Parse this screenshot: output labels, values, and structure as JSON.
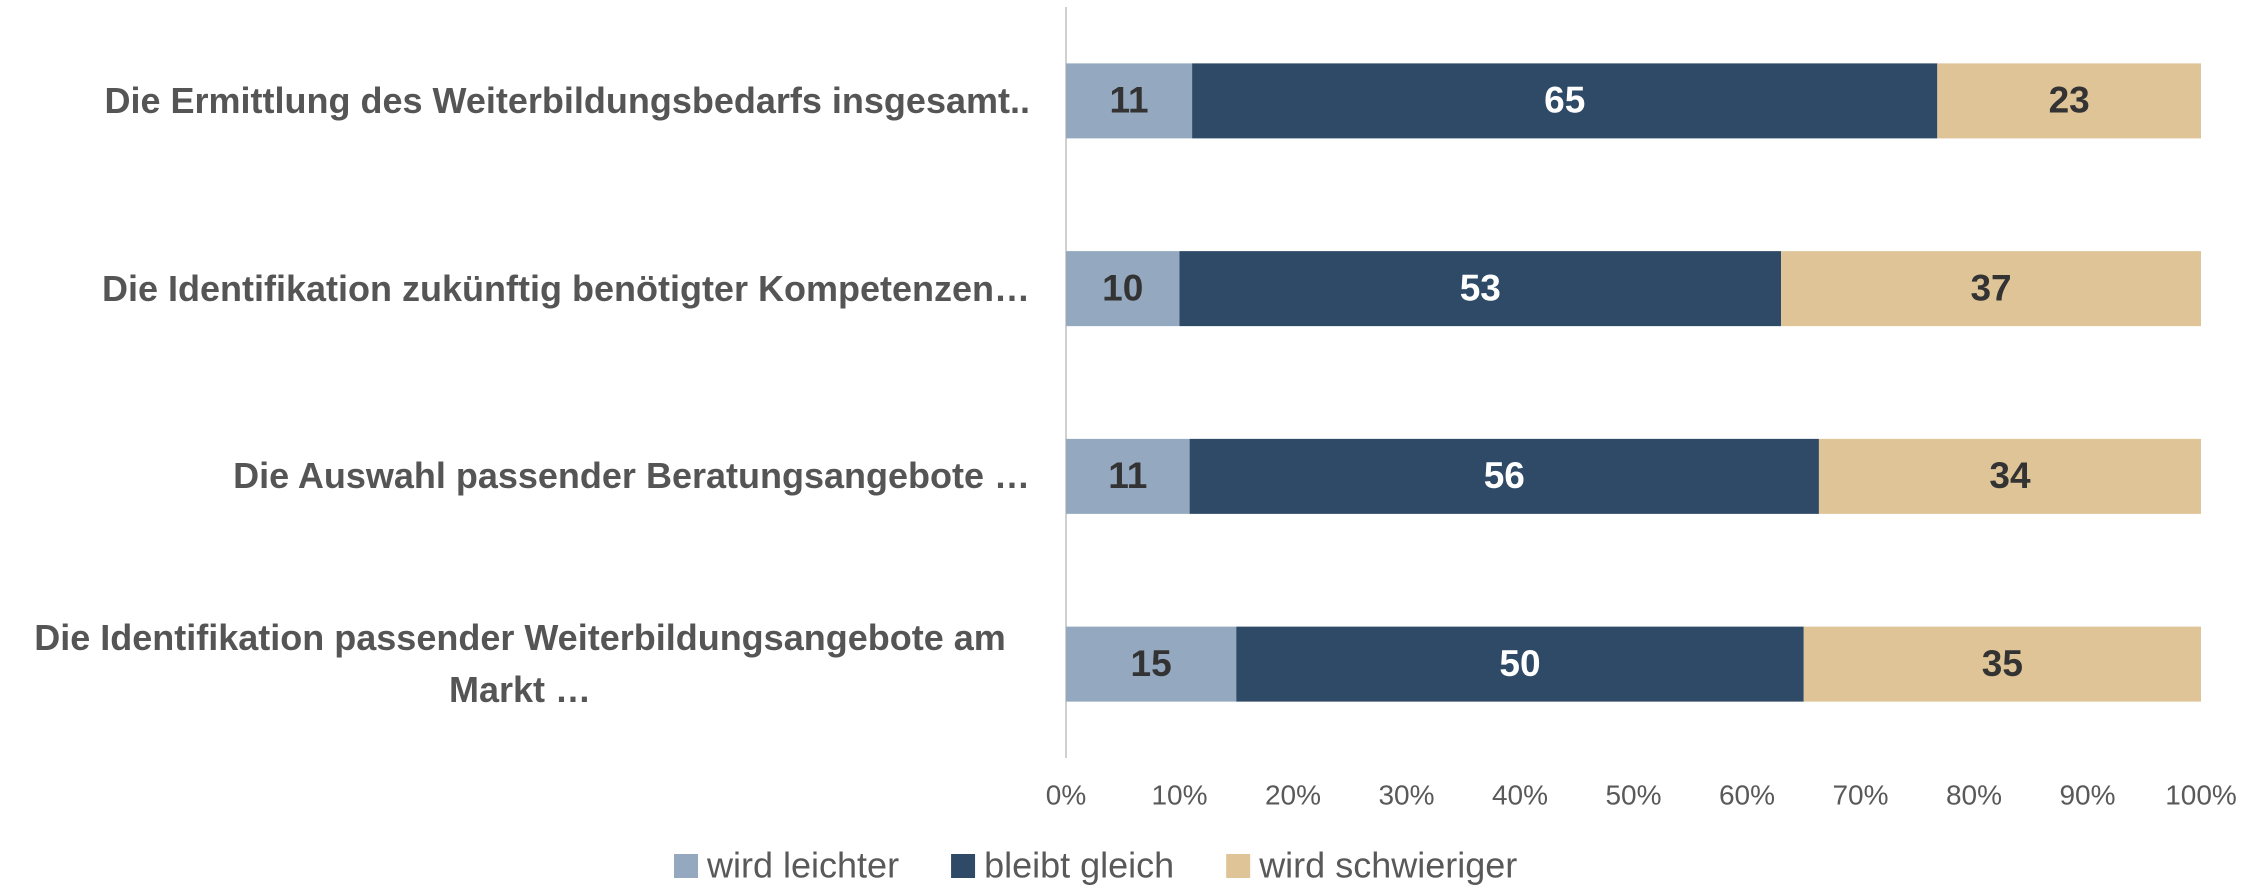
{
  "chart_data": {
    "type": "bar",
    "orientation": "horizontal",
    "stack": "percent",
    "categories": [
      "Die Ermittlung des Weiterbildungsbedarfs insgesamt..",
      "Die Identifikation zukünftig benötigter Kompetenzen…",
      "Die Auswahl passender Beratungsangebote …",
      "Die Identifikation passender Weiterbildungsangebote am Markt …"
    ],
    "series": [
      {
        "name": "wird leichter",
        "color": "#94a9bf",
        "label_color": "#333333",
        "values": [
          11,
          10,
          11,
          15
        ]
      },
      {
        "name": "bleibt gleich",
        "color": "#2e4a66",
        "label_color": "#ffffff",
        "values": [
          65,
          53,
          56,
          50
        ]
      },
      {
        "name": "wird schwieriger",
        "color": "#dfc497",
        "label_color": "#333333",
        "values": [
          23,
          37,
          34,
          35
        ]
      }
    ],
    "xlim": [
      0,
      100
    ],
    "xticks": [
      {
        "value": 0,
        "label": "0%"
      },
      {
        "value": 10,
        "label": "10%"
      },
      {
        "value": 20,
        "label": "20%"
      },
      {
        "value": 30,
        "label": "30%"
      },
      {
        "value": 40,
        "label": "40%"
      },
      {
        "value": 50,
        "label": "50%"
      },
      {
        "value": 60,
        "label": "60%"
      },
      {
        "value": 70,
        "label": "70%"
      },
      {
        "value": 80,
        "label": "80%"
      },
      {
        "value": 90,
        "label": "90%"
      },
      {
        "value": 100,
        "label": "100%"
      }
    ],
    "grid": false,
    "legend": "bottom"
  }
}
